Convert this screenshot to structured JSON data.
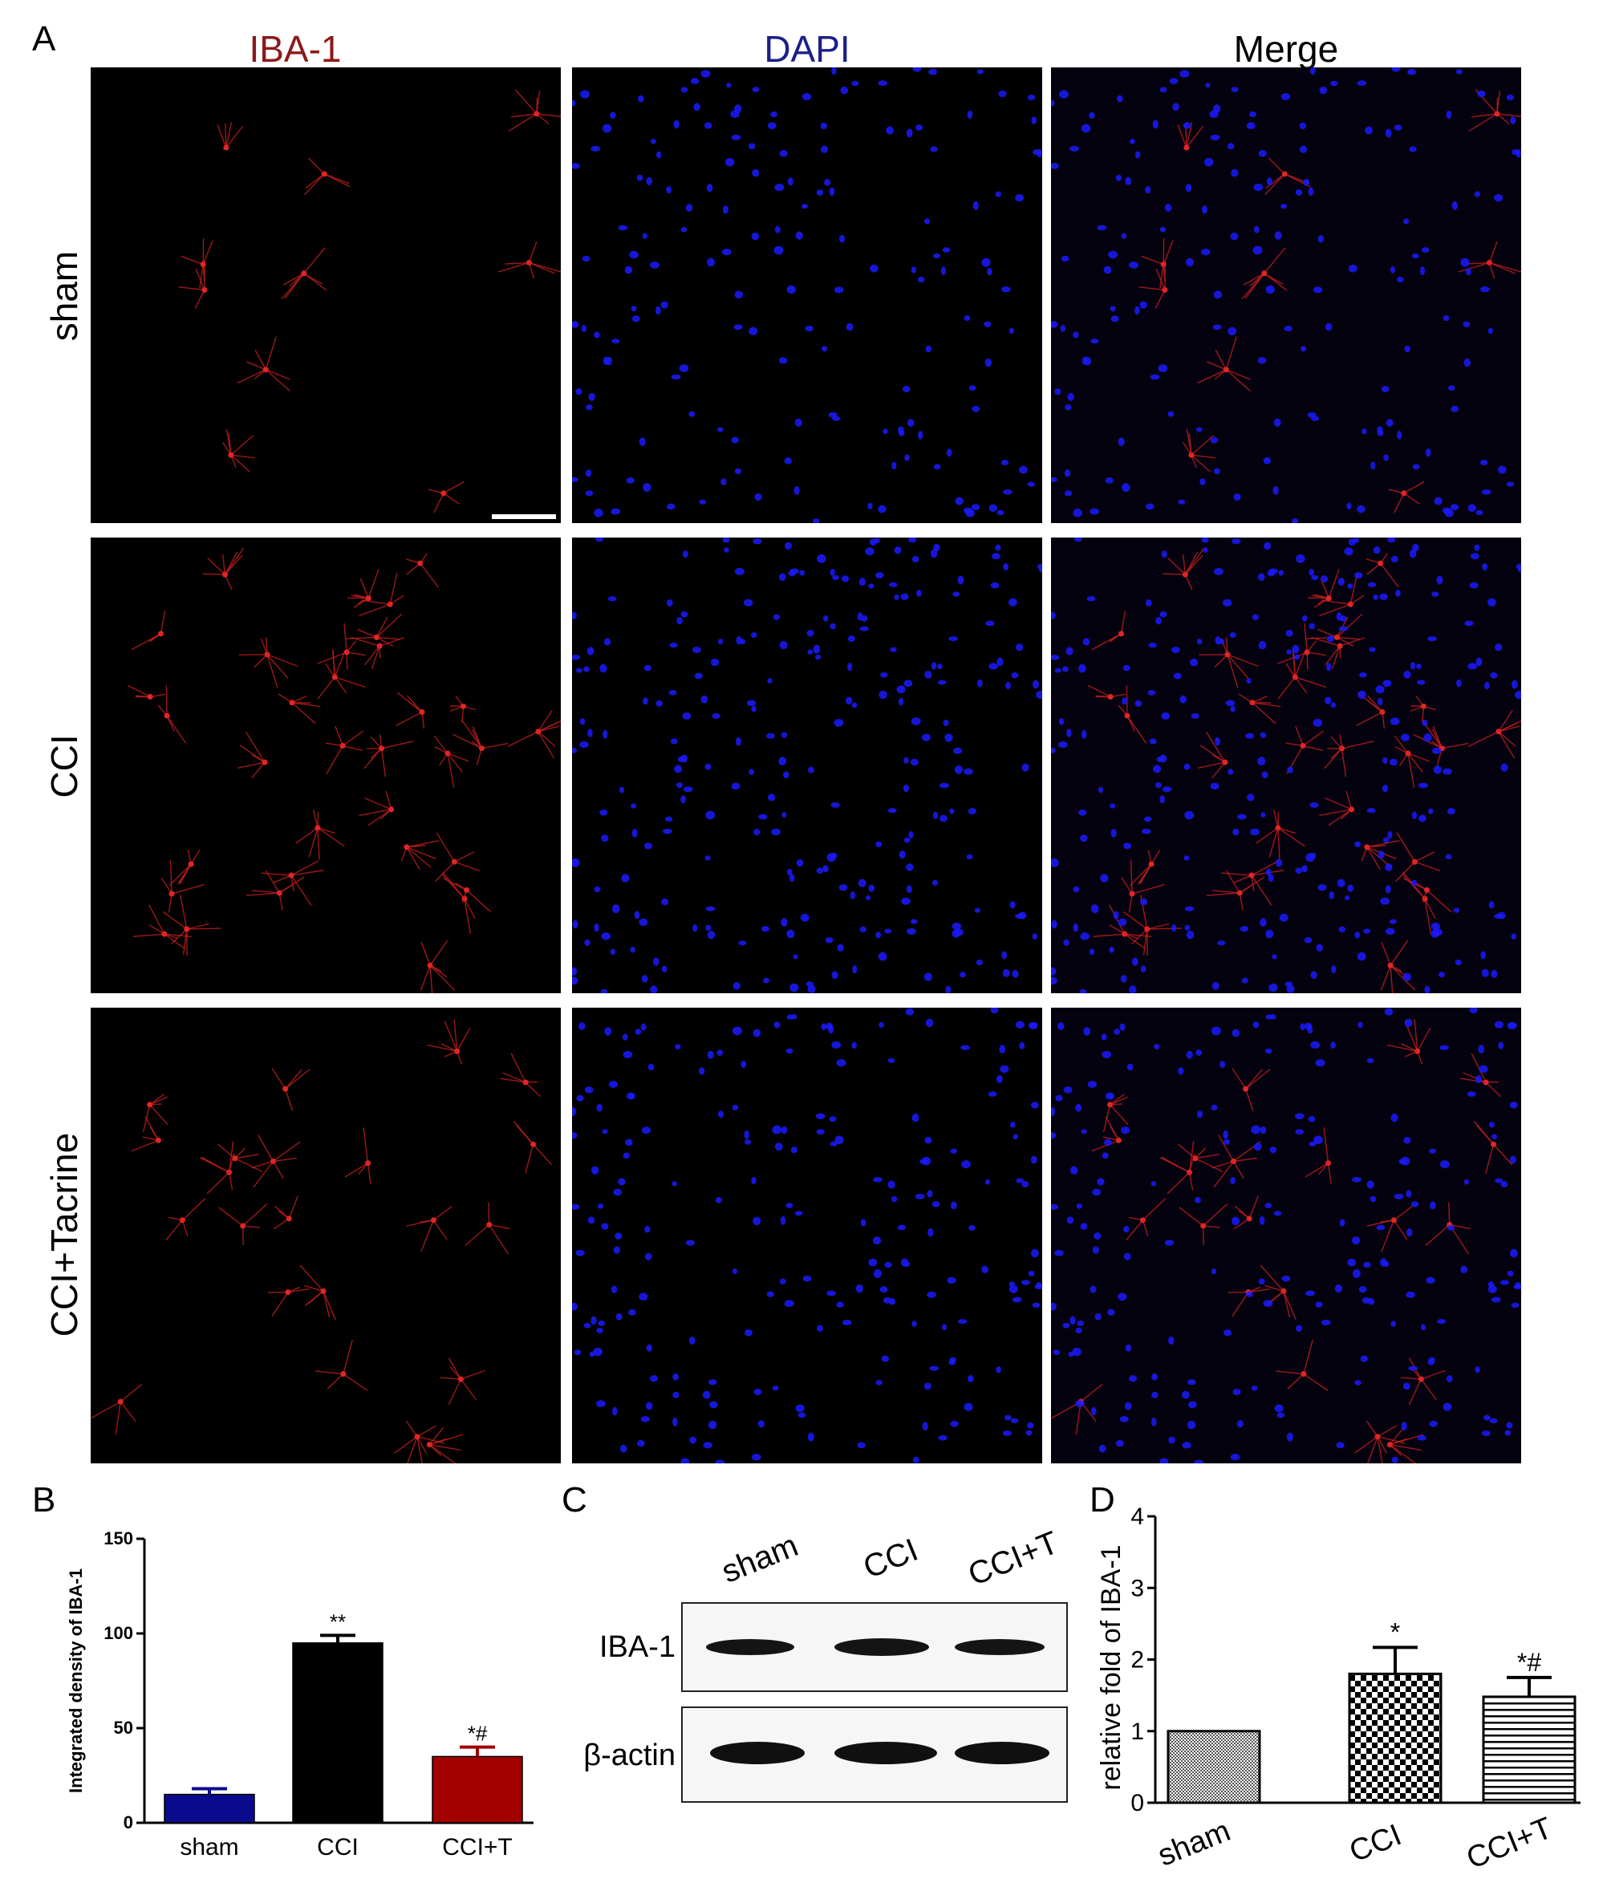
{
  "panels": {
    "a": {
      "letter": "A",
      "columns": [
        "IBA-1",
        "DAPI",
        "Merge"
      ],
      "rows": [
        "sham",
        "CCI",
        "CCI+Tacrine"
      ],
      "column_colors": [
        "#8b1a1a",
        "#1b1f8a",
        "#000000"
      ]
    },
    "b": {
      "letter": "B"
    },
    "c": {
      "letter": "C",
      "lanes": [
        "sham",
        "CCI",
        "CCI+T"
      ],
      "bands": [
        "IBA-1",
        "β-actin"
      ]
    },
    "d": {
      "letter": "D"
    }
  },
  "chart_data": [
    {
      "type": "bar",
      "panel": "B",
      "categories": [
        "sham",
        "CCI",
        "CCI+T"
      ],
      "values": [
        15,
        95,
        35
      ],
      "errors": [
        3,
        4,
        5
      ],
      "annotations": [
        "",
        "**",
        "*#"
      ],
      "colors": [
        "#0a0a8c",
        "#000000",
        "#a30000"
      ],
      "ylabel": "Integrated density of IBA-1",
      "ylim": [
        0,
        150
      ],
      "yticks": [
        0,
        50,
        100,
        150
      ],
      "grid": false
    },
    {
      "type": "bar",
      "panel": "D",
      "categories": [
        "sham",
        "CCI",
        "CCI+T"
      ],
      "values": [
        1.0,
        1.8,
        1.48
      ],
      "errors": [
        0,
        0.37,
        0.27
      ],
      "annotations": [
        "",
        "*",
        "*#"
      ],
      "patterns": [
        "fine-dots",
        "checker",
        "horizontal-lines"
      ],
      "ylabel": "relative fold of IBA-1",
      "ylim": [
        0,
        4
      ],
      "yticks": [
        0,
        1,
        2,
        3,
        4
      ],
      "grid": false
    }
  ]
}
